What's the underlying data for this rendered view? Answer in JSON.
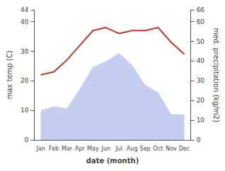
{
  "chart_data": {
    "type": "line",
    "categories": [
      "Jan",
      "Feb",
      "Mar",
      "Apr",
      "May",
      "Jun",
      "Jul",
      "Aug",
      "Sep",
      "Oct",
      "Nov",
      "Dec"
    ],
    "xlabel": "date (month)",
    "ylabel": "max temp (C)",
    "y2label": "med. precipitation (kg/m2)",
    "series": [
      {
        "type": "area",
        "axis": "y2",
        "color": "#c5cef0",
        "values": [
          15,
          17,
          16,
          26,
          37,
          40,
          44,
          38,
          28,
          24,
          13,
          13
        ]
      },
      {
        "type": "line",
        "color": "#c0392b",
        "values": [
          22,
          23,
          27,
          32,
          37,
          38,
          36,
          37,
          37,
          38,
          33,
          29
        ]
      }
    ],
    "ylim": [
      0,
      44
    ],
    "yticks": [
      0,
      10,
      20,
      30,
      40
    ],
    "y2lim": [
      0,
      66
    ],
    "y2ticks": [
      0,
      10,
      20,
      30,
      40,
      50,
      60
    ],
    "grid": false
  }
}
